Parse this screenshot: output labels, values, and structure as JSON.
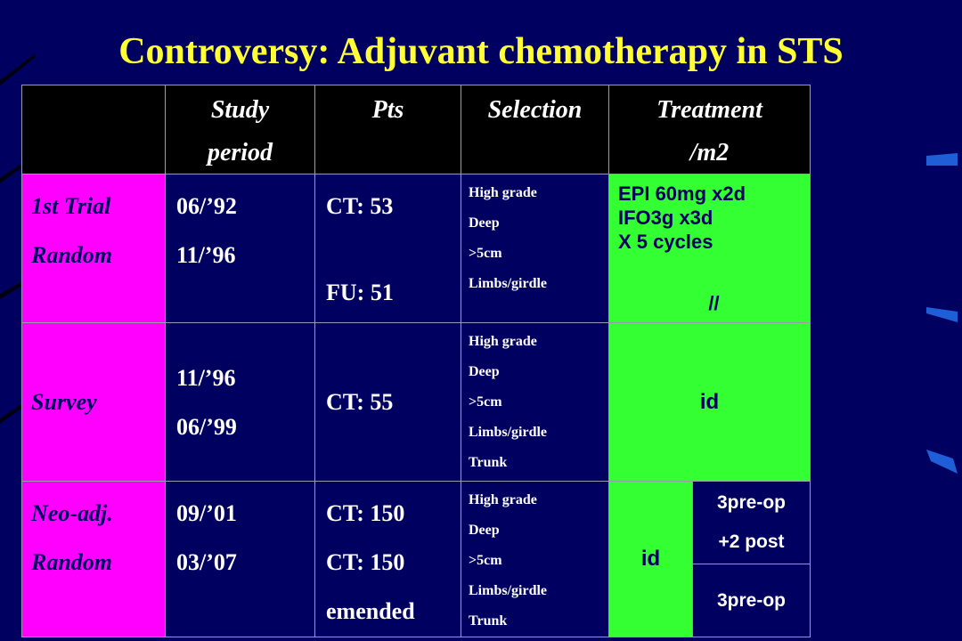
{
  "title": "Controversy: Adjuvant chemotherapy in STS",
  "table": {
    "header": [
      [
        "Study",
        "period"
      ],
      [
        "Pts"
      ],
      [
        "Selection"
      ],
      [
        "Treatment",
        "/m2"
      ]
    ],
    "rows": [
      {
        "label": [
          "1st Trial",
          "Random"
        ],
        "period": [
          "06/’92",
          "11/’96"
        ],
        "pts": [
          "CT: 53",
          "FU: 51"
        ],
        "selection": [
          "High grade",
          "Deep",
          ">5cm",
          "Limbs/girdle"
        ],
        "treatment": [
          "EPI 60mg x2d",
          "IFO3g x3d",
          "X 5 cycles",
          "//"
        ]
      },
      {
        "label": [
          "Survey"
        ],
        "period": [
          "11/’96",
          "06/’99"
        ],
        "pts": [
          "CT: 55"
        ],
        "selection": [
          "High grade",
          "Deep",
          ">5cm",
          "Limbs/girdle",
          "Trunk"
        ],
        "treatment": [
          "id"
        ]
      },
      {
        "label": [
          "Neo-adj.",
          "Random"
        ],
        "period": [
          "09/’01",
          "03/’07"
        ],
        "pts": [
          "CT: 150",
          "CT: 150",
          "emended"
        ],
        "selection": [
          "High grade",
          "Deep",
          ">5cm",
          "Limbs/girdle",
          "Trunk"
        ],
        "treatment": [
          "id"
        ],
        "arm_a": [
          "3pre-op",
          "+2 post"
        ],
        "arm_b": [
          "3pre-op"
        ]
      }
    ]
  }
}
